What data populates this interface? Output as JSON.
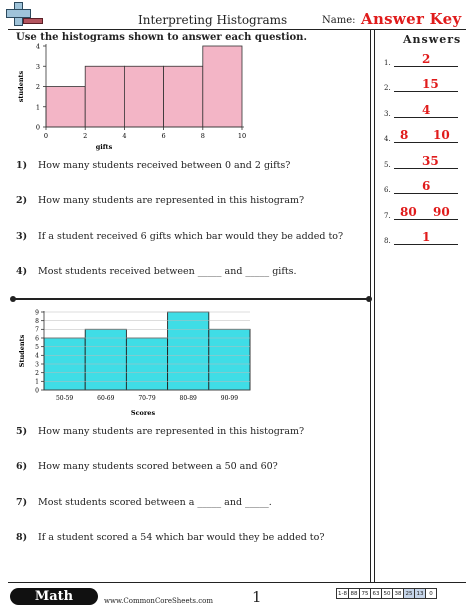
{
  "header": {
    "title": "Interpreting Histograms",
    "name_label": "Name:",
    "answer_key": "Answer Key"
  },
  "instructions": "Use the histograms shown to answer each question.",
  "histogram1": {
    "chart_data": {
      "type": "bar",
      "xlabel": "gifts",
      "ylabel": "students",
      "x_ticks": [
        "0",
        "2",
        "4",
        "6",
        "8",
        "10"
      ],
      "y_ticks": [
        "0",
        "1",
        "2",
        "3",
        "4"
      ],
      "bins": [
        [
          0,
          2
        ],
        [
          2,
          4
        ],
        [
          4,
          6
        ],
        [
          6,
          8
        ],
        [
          8,
          10
        ]
      ],
      "values": [
        2,
        3,
        3,
        3,
        4
      ],
      "ylim": [
        0,
        4
      ],
      "color": "#f3b5c6"
    }
  },
  "questions_part1": [
    {
      "num": "1)",
      "text": "How many students received between 0 and 2 gifts?"
    },
    {
      "num": "2)",
      "text": "How many students are represented in this histogram?"
    },
    {
      "num": "3)",
      "text": "If a student received 6 gifts which bar would they be added to?"
    },
    {
      "num": "4)",
      "text": "Most students received between _____ and _____ gifts."
    }
  ],
  "histogram2": {
    "chart_data": {
      "type": "bar",
      "xlabel": "Scores",
      "ylabel": "Students",
      "categories": [
        "50-59",
        "60-69",
        "70-79",
        "80-89",
        "90-99"
      ],
      "y_ticks": [
        "0",
        "1",
        "2",
        "3",
        "4",
        "5",
        "6",
        "7",
        "8",
        "9"
      ],
      "values": [
        6,
        7,
        6,
        9,
        7
      ],
      "ylim": [
        0,
        9
      ],
      "color": "#3fdde6"
    }
  },
  "questions_part2": [
    {
      "num": "5)",
      "text": "How many students are represented in this histogram?"
    },
    {
      "num": "6)",
      "text": "How many students scored between a 50 and 60?"
    },
    {
      "num": "7)",
      "text": "Most students scored between a _____ and _____."
    },
    {
      "num": "8)",
      "text": "If a student scored a 54 which bar would they be added to?"
    }
  ],
  "answers": {
    "title": "Answers",
    "items": [
      {
        "num": "1.",
        "values": [
          "2"
        ]
      },
      {
        "num": "2.",
        "values": [
          "15"
        ]
      },
      {
        "num": "3.",
        "values": [
          "4"
        ]
      },
      {
        "num": "4.",
        "values": [
          "8",
          "10"
        ]
      },
      {
        "num": "5.",
        "values": [
          "35"
        ]
      },
      {
        "num": "6.",
        "values": [
          "6"
        ]
      },
      {
        "num": "7.",
        "values": [
          "80",
          "90"
        ]
      },
      {
        "num": "8.",
        "values": [
          "1"
        ]
      }
    ]
  },
  "footer": {
    "subject": "Math",
    "site": "www.CommonCoreSheets.com",
    "page": "1",
    "score_labels": [
      "1-8",
      "88",
      "75",
      "63",
      "50",
      "38",
      "25",
      "13",
      "0"
    ],
    "score_highlight": [
      "25",
      "13"
    ]
  }
}
